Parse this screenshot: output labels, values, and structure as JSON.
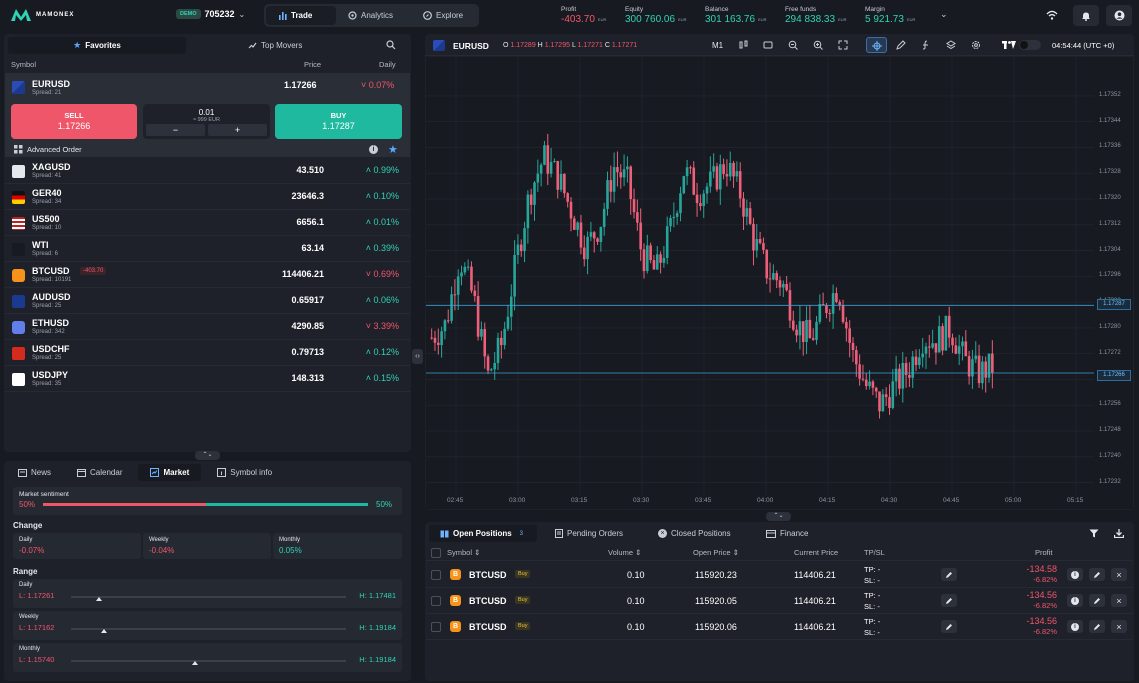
{
  "brand": {
    "name": "MAMONEX"
  },
  "account": {
    "badge": "DEMO",
    "number": "705232"
  },
  "nav": [
    {
      "label": "Trade",
      "icon": "bar-chart-icon"
    },
    {
      "label": "Analytics",
      "icon": "analytics-icon"
    },
    {
      "label": "Explore",
      "icon": "explore-icon"
    }
  ],
  "stats": [
    {
      "label": "Profit",
      "value": "-403.70",
      "currency": "EUR",
      "color": "#f0566a"
    },
    {
      "label": "Equity",
      "value": "300 760.06",
      "currency": "EUR",
      "color": "#2fd3b5"
    },
    {
      "label": "Balance",
      "value": "301 163.76",
      "currency": "EUR",
      "color": "#2fd3b5"
    },
    {
      "label": "Free funds",
      "value": "294 838.33",
      "currency": "EUR",
      "color": "#2fd3b5"
    },
    {
      "label": "Margin",
      "value": "5 921.73",
      "currency": "EUR",
      "color": "#2fd3b5"
    }
  ],
  "watchlist": {
    "tabs": [
      "Favorites",
      "Top Movers"
    ],
    "headers": {
      "symbol": "Symbol",
      "price": "Price",
      "daily": "Daily"
    },
    "selected": {
      "symbol": "EURUSD",
      "spread": "Spread: 21",
      "price": "1.17266",
      "daily": "0.07%",
      "dir": "down"
    },
    "trade": {
      "sell_label": "SELL",
      "sell_price": "1.17266",
      "volume": "0.01",
      "volume_sub": "≈ 999 EUR",
      "buy_label": "BUY",
      "buy_price": "1.17287",
      "minus": "−",
      "plus": "+"
    },
    "advanced_order": "Advanced Order",
    "items": [
      {
        "symbol": "XAGUSD",
        "spread": "Spread: 41",
        "price": "43.510",
        "daily": "0.99%",
        "dir": "up",
        "flag": "silver"
      },
      {
        "symbol": "GER40",
        "spread": "Spread: 34",
        "price": "23646.3",
        "daily": "0.10%",
        "dir": "up",
        "flag": "de"
      },
      {
        "symbol": "US500",
        "spread": "Spread: 10",
        "price": "6656.1",
        "daily": "0.01%",
        "dir": "up",
        "flag": "us"
      },
      {
        "symbol": "WTI",
        "spread": "Spread: 6",
        "price": "63.14",
        "daily": "0.39%",
        "dir": "up",
        "flag": "oil"
      },
      {
        "symbol": "BTCUSD",
        "spread": "Spread: 10191",
        "price": "114406.21",
        "daily": "0.69%",
        "dir": "down",
        "flag": "btc",
        "badge": "-403.70"
      },
      {
        "symbol": "AUDUSD",
        "spread": "Spread: 25",
        "price": "0.65917",
        "daily": "0.06%",
        "dir": "up",
        "flag": "au"
      },
      {
        "symbol": "ETHUSD",
        "spread": "Spread: 342",
        "price": "4290.85",
        "daily": "3.39%",
        "dir": "down",
        "flag": "eth"
      },
      {
        "symbol": "USDCHF",
        "spread": "Spread: 25",
        "price": "0.79713",
        "daily": "0.12%",
        "dir": "up",
        "flag": "ch"
      },
      {
        "symbol": "USDJPY",
        "spread": "Spread: 35",
        "price": "148.313",
        "daily": "0.15%",
        "dir": "up",
        "flag": "jp"
      }
    ]
  },
  "infotabs": [
    "News",
    "Calendar",
    "Market",
    "Symbol info"
  ],
  "market": {
    "sentiment_label": "Market sentiment",
    "sell_pct": "50%",
    "buy_pct": "50%",
    "sell_fraction": 0.5,
    "change_title": "Change",
    "change": [
      {
        "label": "Daily",
        "value": "-0.07%",
        "dir": "down"
      },
      {
        "label": "Weekly",
        "value": "-0.04%",
        "dir": "down"
      },
      {
        "label": "Monthly",
        "value": "0.05%",
        "dir": "up"
      }
    ],
    "range_title": "Range",
    "ranges": [
      {
        "label": "Daily",
        "low": "L: 1.17261",
        "high": "H: 1.17481",
        "pos": 0.1
      },
      {
        "label": "Weekly",
        "low": "L: 1.17162",
        "high": "H: 1.19184",
        "pos": 0.12
      },
      {
        "label": "Monthly",
        "low": "L: 1.15740",
        "high": "H: 1.19184",
        "pos": 0.45
      }
    ]
  },
  "chart_header": {
    "symbol": "EURUSD",
    "o_label": "O",
    "o": "1.17289",
    "h_label": "H",
    "h": "1.17295",
    "l_label": "L",
    "l": "1.17271",
    "c_label": "C",
    "c": "1.17271",
    "timeframe": "M1",
    "clock": "04:54:44 (UTC +0)"
  },
  "chart_data": {
    "type": "candlestick",
    "y_ticks": [
      "1.17352",
      "1.17344",
      "1.17336",
      "1.17328",
      "1.17320",
      "1.17312",
      "1.17304",
      "1.17296",
      "1.17288",
      "1.17280",
      "1.17272",
      "1.17264",
      "1.17256",
      "1.17248",
      "1.17240",
      "1.17232"
    ],
    "x_ticks": [
      "02:45",
      "03:00",
      "03:15",
      "03:30",
      "03:45",
      "04:00",
      "04:15",
      "04:30",
      "04:45",
      "05:00",
      "05:15"
    ],
    "ylim": [
      1.1723,
      1.17356
    ],
    "ask_line": "1.17287",
    "bid_line": "1.17266",
    "close_path": [
      1.17277,
      1.17281,
      1.17302,
      1.17289,
      1.17265,
      1.17275,
      1.173,
      1.17322,
      1.17333,
      1.17327,
      1.17316,
      1.17305,
      1.17312,
      1.1733,
      1.17325,
      1.17303,
      1.17297,
      1.1731,
      1.17329,
      1.17322,
      1.17325,
      1.17331,
      1.17322,
      1.17307,
      1.17297,
      1.17294,
      1.17282,
      1.17276,
      1.17286,
      1.17293,
      1.17272,
      1.17262,
      1.17256,
      1.17262,
      1.17267,
      1.17277,
      1.17276,
      1.1728,
      1.1727,
      1.17266,
      1.17268
    ]
  },
  "positions": {
    "tabs": [
      {
        "label": "Open Positions",
        "count": "3"
      },
      {
        "label": "Pending Orders"
      },
      {
        "label": "Closed Positions"
      },
      {
        "label": "Finance"
      }
    ],
    "headers": {
      "symbol": "Symbol",
      "volume": "Volume",
      "open": "Open Price",
      "current": "Current Price",
      "tpsl": "TP/SL",
      "profit": "Profit"
    },
    "rows": [
      {
        "symbol": "BTCUSD",
        "side": "Buy",
        "volume": "0.10",
        "open": "115920.23",
        "current": "114406.21",
        "tp": "TP: -",
        "sl": "SL: -",
        "profit": "-134.58",
        "pct": "-6.82%"
      },
      {
        "symbol": "BTCUSD",
        "side": "Buy",
        "volume": "0.10",
        "open": "115920.05",
        "current": "114406.21",
        "tp": "TP: -",
        "sl": "SL: -",
        "profit": "-134.56",
        "pct": "-6.82%"
      },
      {
        "symbol": "BTCUSD",
        "side": "Buy",
        "volume": "0.10",
        "open": "115920.06",
        "current": "114406.21",
        "tp": "TP: -",
        "sl": "SL: -",
        "profit": "-134.56",
        "pct": "-6.82%"
      }
    ]
  }
}
